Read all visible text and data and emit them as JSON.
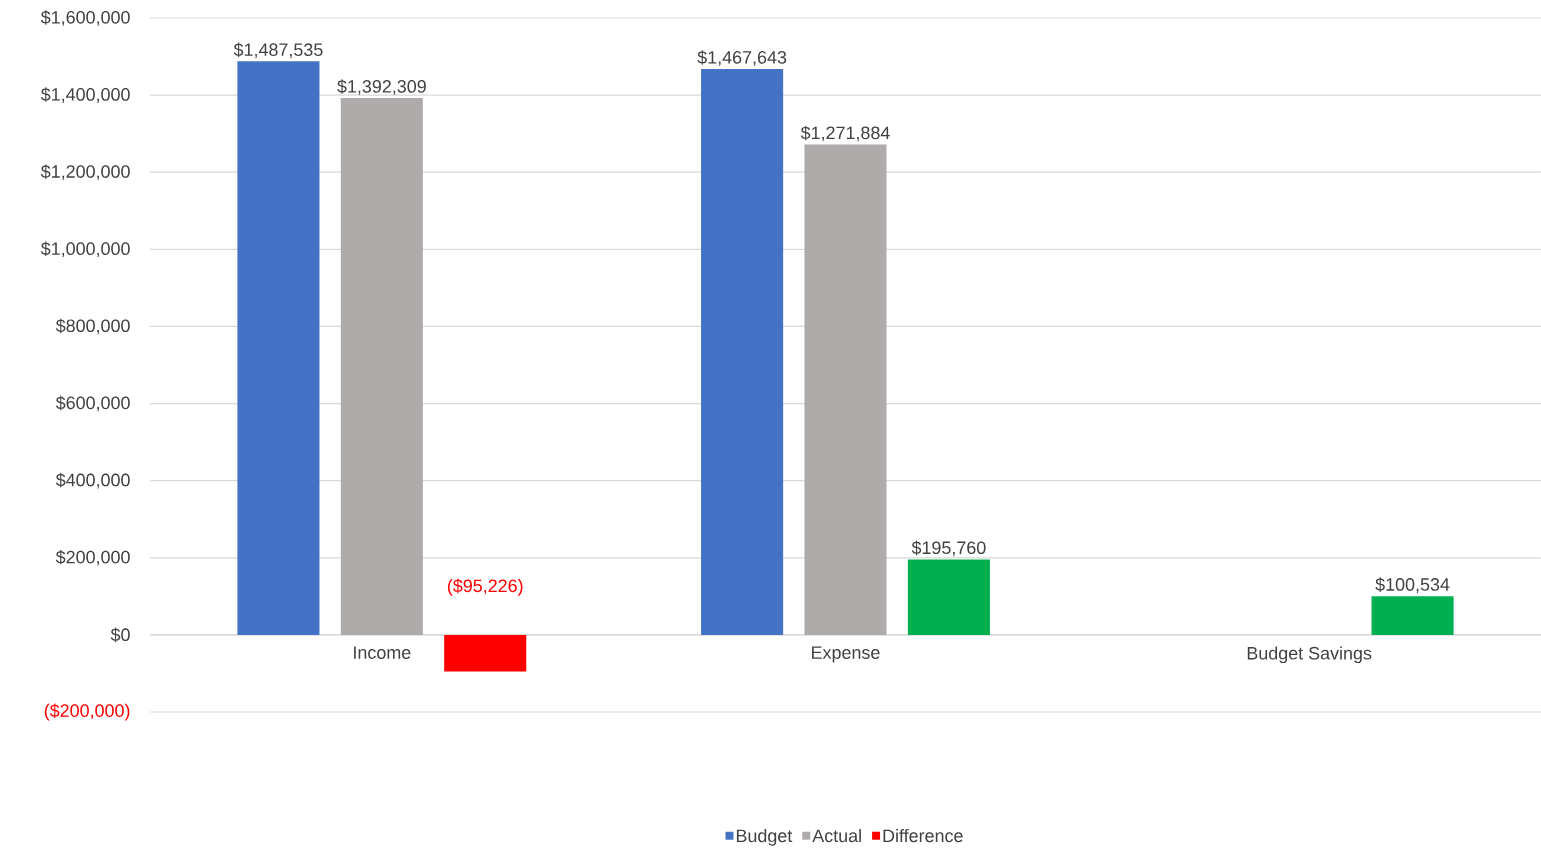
{
  "chart_data": {
    "type": "bar",
    "categories": [
      "Income",
      "Expense",
      "Budget Savings"
    ],
    "series": [
      {
        "name": "Budget",
        "color": "#4472c4",
        "values": [
          1487535,
          1467643,
          null
        ],
        "value_labels": [
          "$1,487,535",
          "$1,467,643",
          null
        ]
      },
      {
        "name": "Actual",
        "color": "#afabab",
        "values": [
          1392309,
          1271884,
          null
        ],
        "value_labels": [
          "$1,392,309",
          "$1,271,884",
          null
        ]
      },
      {
        "name": "Difference",
        "colors": [
          "#ff0000",
          "#00b050",
          "#00b050"
        ],
        "values": [
          -95226,
          195760,
          100534
        ],
        "value_labels": [
          "($95,226)",
          "$195,760",
          "$100,534"
        ]
      }
    ],
    "ylim": [
      -200000,
      1600000
    ],
    "yticks": [
      {
        "value": -200000,
        "label": "($200,000)"
      },
      {
        "value": 0,
        "label": "$0"
      },
      {
        "value": 200000,
        "label": "$200,000"
      },
      {
        "value": 400000,
        "label": "$400,000"
      },
      {
        "value": 600000,
        "label": "$600,000"
      },
      {
        "value": 800000,
        "label": "$800,000"
      },
      {
        "value": 1000000,
        "label": "$1,000,000"
      },
      {
        "value": 1200000,
        "label": "$1,200,000"
      },
      {
        "value": 1400000,
        "label": "$1,400,000"
      },
      {
        "value": 1600000,
        "label": "$1,600,000"
      }
    ],
    "grid": "y",
    "legend": "bottom"
  }
}
